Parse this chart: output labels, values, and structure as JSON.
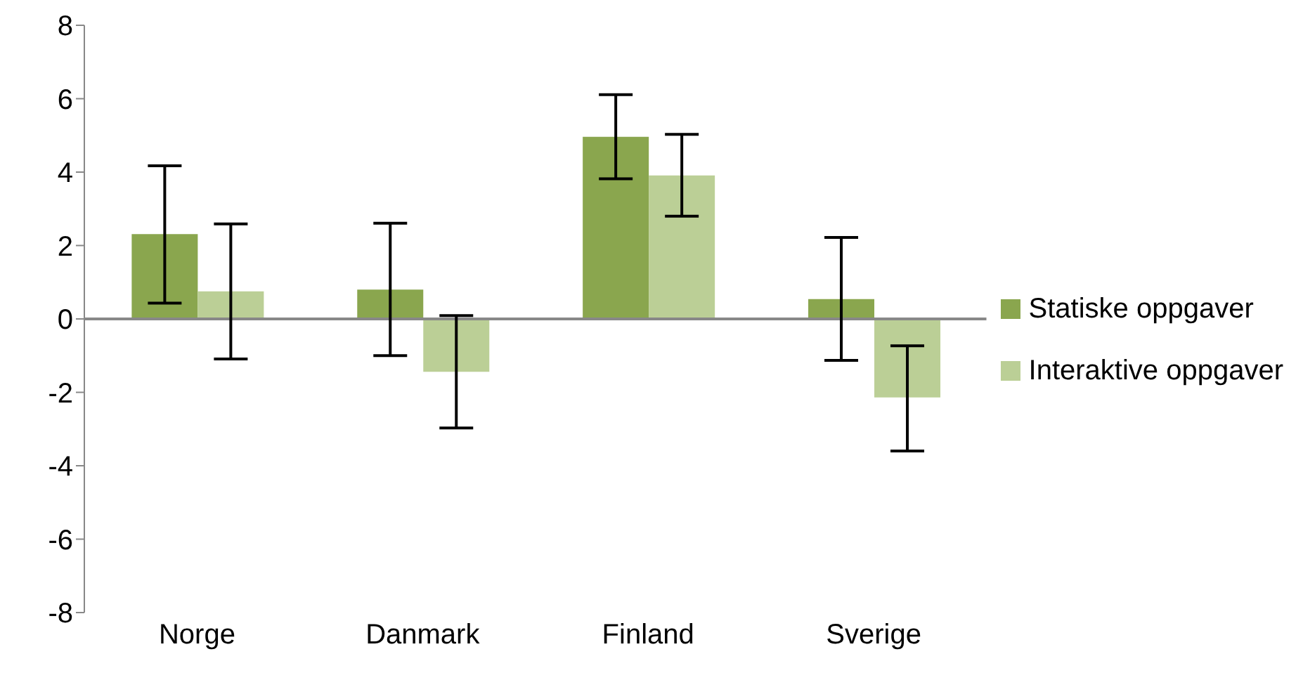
{
  "chart_data": {
    "type": "bar",
    "categories": [
      "Norge",
      "Danmark",
      "Finland",
      "Sverige"
    ],
    "series": [
      {
        "name": "Statiske oppgaver",
        "color": "#8aa64e",
        "values": [
          2.31,
          0.8,
          4.96,
          0.54
        ],
        "errors": [
          [
            0.43,
            4.17
          ],
          [
            -1.0,
            2.61
          ],
          [
            3.82,
            6.11
          ],
          [
            -1.13,
            2.22
          ]
        ]
      },
      {
        "name": "Interaktive oppgaver",
        "color": "#bbcf96",
        "values": [
          0.75,
          -1.44,
          3.91,
          -2.14
        ],
        "errors": [
          [
            -1.09,
            2.59
          ],
          [
            -2.97,
            0.09
          ],
          [
            2.8,
            5.03
          ],
          [
            -3.6,
            -0.73
          ]
        ]
      }
    ],
    "ylim": [
      -8,
      8
    ],
    "yticks": [
      -8,
      -6,
      -4,
      -2,
      0,
      2,
      4,
      6,
      8
    ],
    "legend": "right"
  }
}
